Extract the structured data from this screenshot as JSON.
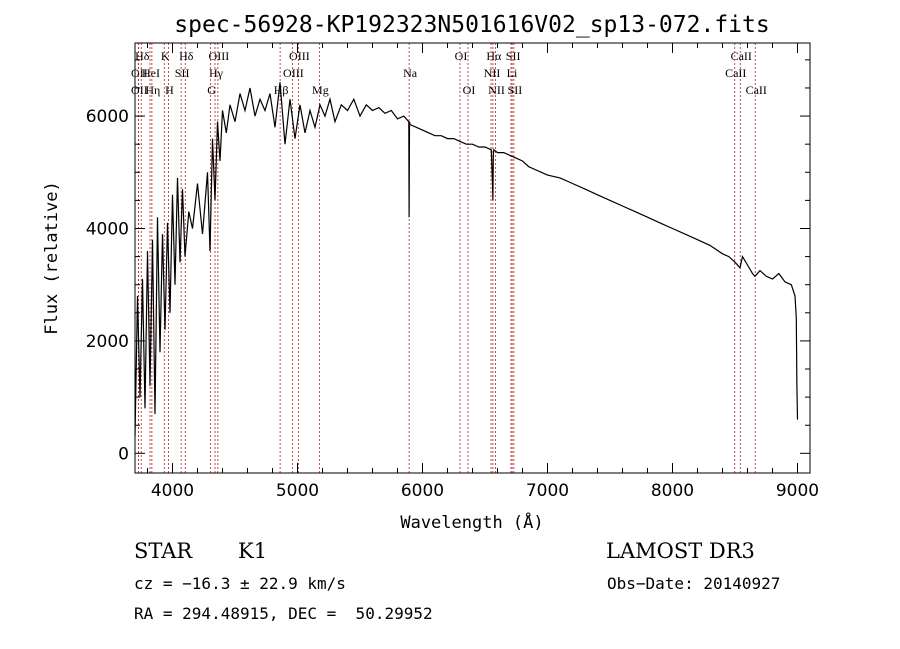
{
  "chart_data": {
    "type": "line",
    "title": "spec-56928-KP192323N501616V02_sp13-072.fits",
    "xlabel": "Wavelength (Å)",
    "ylabel": "Flux (relative)",
    "xlim": [
      3700,
      9100
    ],
    "ylim": [
      -350,
      7300
    ],
    "xticks": [
      4000,
      5000,
      6000,
      7000,
      8000,
      9000
    ],
    "yticks": [
      0,
      2000,
      4000,
      6000
    ],
    "series": [
      {
        "name": "flux",
        "x": [
          3700,
          3720,
          3740,
          3760,
          3780,
          3800,
          3820,
          3840,
          3860,
          3880,
          3900,
          3920,
          3940,
          3960,
          3980,
          4000,
          4020,
          4040,
          4060,
          4080,
          4100,
          4130,
          4160,
          4200,
          4240,
          4280,
          4300,
          4320,
          4340,
          4360,
          4380,
          4400,
          4430,
          4460,
          4500,
          4540,
          4580,
          4620,
          4660,
          4700,
          4740,
          4780,
          4820,
          4860,
          4900,
          4940,
          4980,
          5020,
          5060,
          5100,
          5140,
          5180,
          5220,
          5260,
          5300,
          5350,
          5400,
          5450,
          5500,
          5550,
          5600,
          5650,
          5700,
          5750,
          5800,
          5850,
          5890,
          5893,
          5896,
          5900,
          5950,
          6000,
          6050,
          6100,
          6150,
          6200,
          6250,
          6300,
          6350,
          6400,
          6450,
          6500,
          6550,
          6560,
          6563,
          6566,
          6570,
          6600,
          6650,
          6700,
          6750,
          6800,
          6850,
          6900,
          6950,
          7000,
          7100,
          7200,
          7300,
          7400,
          7500,
          7600,
          7700,
          7800,
          7900,
          8000,
          8100,
          8200,
          8300,
          8400,
          8450,
          8500,
          8540,
          8560,
          8600,
          8640,
          8660,
          8700,
          8750,
          8800,
          8850,
          8900,
          8950,
          8980,
          8990,
          8995,
          9000
        ],
        "y": [
          300,
          2800,
          1000,
          3100,
          800,
          3600,
          1200,
          3800,
          700,
          4200,
          1800,
          3900,
          2200,
          4100,
          2500,
          4600,
          3000,
          4900,
          3400,
          4700,
          3500,
          4300,
          4000,
          4800,
          3900,
          5000,
          3600,
          5600,
          4500,
          5900,
          5200,
          6100,
          5700,
          6200,
          5900,
          6400,
          6100,
          6500,
          6000,
          6300,
          6100,
          6400,
          5800,
          6600,
          5500,
          6300,
          5600,
          6200,
          5700,
          6100,
          5800,
          6200,
          6000,
          6300,
          5900,
          6200,
          6100,
          6300,
          6000,
          6200,
          6100,
          6150,
          6050,
          6100,
          5950,
          6000,
          5900,
          4200,
          5900,
          5850,
          5800,
          5750,
          5700,
          5650,
          5650,
          5600,
          5600,
          5550,
          5500,
          5500,
          5450,
          5450,
          5400,
          4800,
          4500,
          5300,
          5400,
          5350,
          5350,
          5300,
          5250,
          5200,
          5100,
          5050,
          5000,
          4950,
          4900,
          4800,
          4700,
          4600,
          4500,
          4400,
          4300,
          4200,
          4100,
          4000,
          3900,
          3800,
          3700,
          3550,
          3500,
          3400,
          3300,
          3500,
          3350,
          3200,
          3150,
          3250,
          3150,
          3100,
          3200,
          3050,
          3000,
          2800,
          2400,
          1200,
          600
        ]
      }
    ],
    "lines": [
      {
        "label": "Hδ",
        "x": 3750,
        "row": 0
      },
      {
        "label": "OII",
        "x": 3727,
        "row": 1
      },
      {
        "label": "OII",
        "x": 3727,
        "row": 2
      },
      {
        "label": "HeI",
        "x": 3820,
        "row": 1
      },
      {
        "label": "Hη",
        "x": 3835,
        "row": 2
      },
      {
        "label": "K",
        "x": 3934,
        "row": 0
      },
      {
        "label": "H",
        "x": 3968,
        "row": 2
      },
      {
        "label": "SII",
        "x": 4069,
        "row": 1
      },
      {
        "label": "Hδ",
        "x": 4102,
        "row": 0
      },
      {
        "label": "OIII",
        "x": 4363,
        "row": 0
      },
      {
        "label": "Hγ",
        "x": 4340,
        "row": 1
      },
      {
        "label": "G",
        "x": 4305,
        "row": 2
      },
      {
        "label": "OIII",
        "x": 5007,
        "row": 0
      },
      {
        "label": "OIII",
        "x": 4959,
        "row": 1
      },
      {
        "label": "Hβ",
        "x": 4861,
        "row": 2
      },
      {
        "label": "Mg",
        "x": 5175,
        "row": 2
      },
      {
        "label": "Na",
        "x": 5893,
        "row": 1
      },
      {
        "label": "OI",
        "x": 6300,
        "row": 0
      },
      {
        "label": "OI",
        "x": 6364,
        "row": 2
      },
      {
        "label": "Hα",
        "x": 6563,
        "row": 0
      },
      {
        "label": "NII",
        "x": 6548,
        "row": 1
      },
      {
        "label": "NII",
        "x": 6584,
        "row": 2
      },
      {
        "label": "SII",
        "x": 6717,
        "row": 0
      },
      {
        "label": "Li",
        "x": 6708,
        "row": 1
      },
      {
        "label": "SII",
        "x": 6731,
        "row": 2
      },
      {
        "label": "CaII",
        "x": 8542,
        "row": 0
      },
      {
        "label": "CaII",
        "x": 8498,
        "row": 1
      },
      {
        "label": "CaII",
        "x": 8662,
        "row": 2
      }
    ]
  },
  "info": {
    "class": "STAR",
    "subclass": "K1",
    "survey": "LAMOST DR3",
    "cz": "cz = −16.3 ± 22.9 km/s",
    "obsdate": "Obs−Date: 20140927",
    "radec": "RA = 294.48915, DEC =  50.29952"
  }
}
